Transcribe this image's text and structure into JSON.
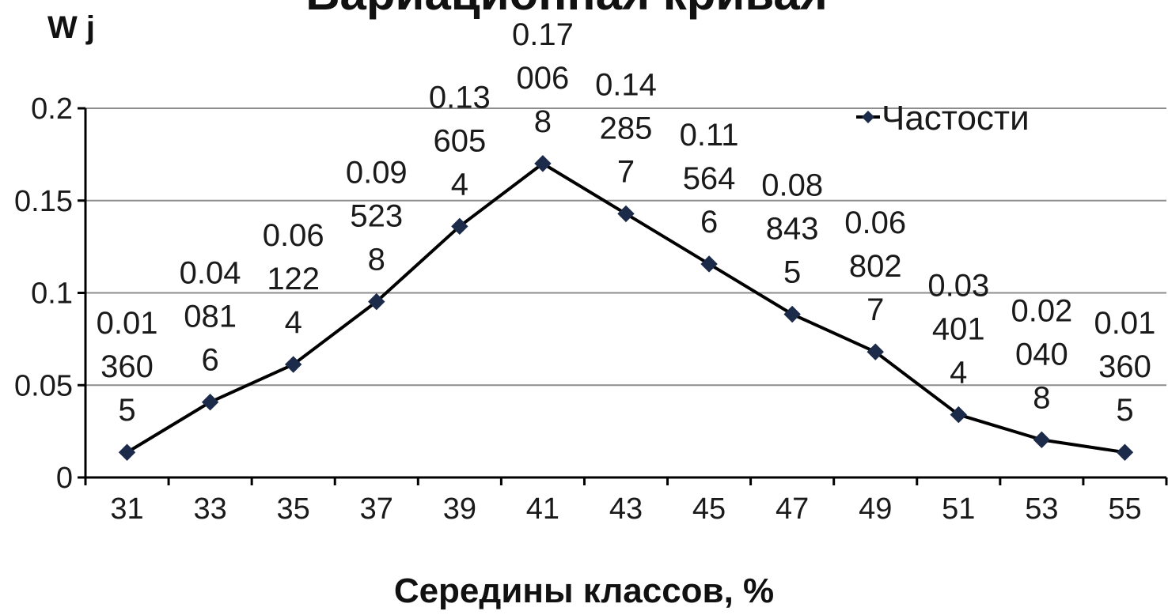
{
  "chart_data": {
    "type": "line",
    "title": "Вариационная кривая",
    "xlabel": "Середины классов, %",
    "ylabel": "W j",
    "categories": [
      "31",
      "33",
      "35",
      "37",
      "39",
      "41",
      "43",
      "45",
      "47",
      "49",
      "51",
      "53",
      "55"
    ],
    "series": [
      {
        "name": "Частости",
        "values": [
          0.013605,
          0.040816,
          0.061224,
          0.095238,
          0.136054,
          0.170068,
          0.142857,
          0.115646,
          0.088435,
          0.068027,
          0.034014,
          0.020408,
          0.013605
        ],
        "labels": [
          [
            "0.01",
            "360",
            "5"
          ],
          [
            "0.04",
            "081",
            "6"
          ],
          [
            "0.06",
            "122",
            "4"
          ],
          [
            "0.09",
            "523",
            "8"
          ],
          [
            "0.13",
            "605",
            "4"
          ],
          [
            "0.17",
            "006",
            "8"
          ],
          [
            "0.14",
            "285",
            "7"
          ],
          [
            "0.11",
            "564",
            "6"
          ],
          [
            "0.08",
            "843",
            "5"
          ],
          [
            "0.06",
            "802",
            "7"
          ],
          [
            "0.03",
            "401",
            "4"
          ],
          [
            "0.02",
            "040",
            "8"
          ],
          [
            "0.01",
            "360",
            "5"
          ]
        ]
      }
    ],
    "yticks": [
      "0",
      "0.05",
      "0.1",
      "0.15",
      "0.2"
    ],
    "ylim": [
      0,
      0.2
    ],
    "grid": true,
    "legend": "top-right",
    "colors": {
      "line": "#000000",
      "marker": "#1c2b4a",
      "grid": "#8c8c8c",
      "axis": "#000000"
    }
  }
}
